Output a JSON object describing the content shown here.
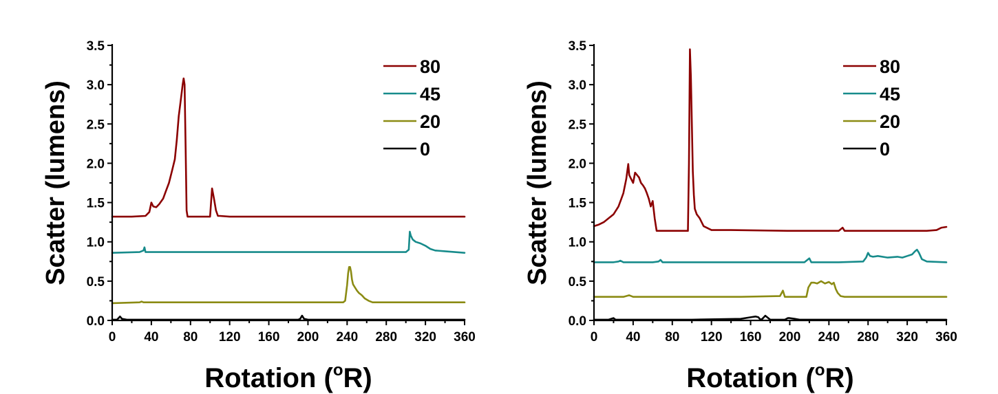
{
  "chart_data": [
    {
      "type": "line",
      "title": "",
      "xlabel": "Rotation (°R)",
      "xlabel_main": "Rotation (",
      "xlabel_sup": "o",
      "xlabel_end": "R)",
      "ylabel": "Scatter (lumens)",
      "xlim": [
        0,
        360
      ],
      "ylim": [
        0,
        3.5
      ],
      "xticks": [
        "0",
        "40",
        "80",
        "120",
        "160",
        "200",
        "240",
        "280",
        "320",
        "360"
      ],
      "yticks": [
        "0.0",
        "0.5",
        "1.0",
        "1.5",
        "2.0",
        "2.5",
        "3.0",
        "3.5"
      ],
      "legend_position": "top-right",
      "series": [
        {
          "name": "80",
          "color": "#8b0000",
          "x": [
            0,
            20,
            34,
            38,
            40,
            42,
            45,
            48,
            52,
            55,
            58,
            61,
            64,
            66,
            68,
            70,
            72,
            73,
            74,
            75,
            76,
            77,
            80,
            90,
            100,
            102,
            104,
            106,
            108,
            110,
            120,
            200,
            300,
            360
          ],
          "y": [
            1.32,
            1.32,
            1.33,
            1.38,
            1.5,
            1.45,
            1.44,
            1.48,
            1.55,
            1.65,
            1.75,
            1.9,
            2.05,
            2.3,
            2.6,
            2.8,
            3.0,
            3.08,
            3.0,
            2.2,
            1.4,
            1.32,
            1.32,
            1.32,
            1.32,
            1.68,
            1.55,
            1.4,
            1.33,
            1.33,
            1.32,
            1.32,
            1.32,
            1.32
          ]
        },
        {
          "name": "45",
          "color": "#178b8b",
          "x": [
            0,
            28,
            32,
            33,
            34,
            36,
            60,
            100,
            200,
            300,
            303,
            304,
            305,
            307,
            310,
            315,
            320,
            325,
            330,
            340,
            360
          ],
          "y": [
            0.86,
            0.87,
            0.89,
            0.93,
            0.87,
            0.87,
            0.87,
            0.87,
            0.87,
            0.87,
            0.9,
            1.13,
            1.08,
            1.03,
            1.0,
            0.98,
            0.95,
            0.91,
            0.89,
            0.88,
            0.86
          ]
        },
        {
          "name": "20",
          "color": "#8b8b13",
          "x": [
            0,
            28,
            30,
            32,
            100,
            200,
            236,
            238,
            240,
            241,
            242,
            243,
            244,
            245,
            246,
            248,
            250,
            252,
            255,
            258,
            262,
            266,
            270,
            300,
            360
          ],
          "y": [
            0.22,
            0.23,
            0.24,
            0.23,
            0.23,
            0.23,
            0.23,
            0.25,
            0.45,
            0.6,
            0.68,
            0.68,
            0.62,
            0.52,
            0.46,
            0.42,
            0.38,
            0.35,
            0.32,
            0.28,
            0.25,
            0.23,
            0.23,
            0.23,
            0.23
          ]
        },
        {
          "name": "0",
          "color": "#000000",
          "x": [
            0,
            5,
            8,
            10,
            15,
            100,
            190,
            192,
            194,
            196,
            200,
            300,
            360
          ],
          "y": [
            0.01,
            0.01,
            0.05,
            0.02,
            0.01,
            0.01,
            0.01,
            0.02,
            0.06,
            0.02,
            0.01,
            0.01,
            0.01
          ]
        }
      ]
    },
    {
      "type": "line",
      "title": "",
      "xlabel": "Rotation (°R)",
      "xlabel_main": "Rotation (",
      "xlabel_sup": "o",
      "xlabel_end": "R)",
      "ylabel": "Scatter (lumens)",
      "xlim": [
        0,
        360
      ],
      "ylim": [
        0,
        3.5
      ],
      "xticks": [
        "0",
        "40",
        "80",
        "120",
        "160",
        "200",
        "240",
        "280",
        "320",
        "360"
      ],
      "yticks": [
        "0.0",
        "0.5",
        "1.0",
        "1.5",
        "2.0",
        "2.5",
        "3.0",
        "3.5"
      ],
      "legend_position": "top-right",
      "series": [
        {
          "name": "80",
          "color": "#8b0000",
          "x": [
            0,
            5,
            10,
            15,
            20,
            25,
            28,
            30,
            33,
            35,
            36,
            38,
            40,
            42,
            44,
            46,
            48,
            50,
            52,
            54,
            56,
            58,
            60,
            62,
            64,
            70,
            80,
            90,
            96,
            97,
            98,
            99,
            100,
            101,
            102,
            103,
            105,
            108,
            112,
            120,
            130,
            140,
            200,
            250,
            254,
            256,
            300,
            340,
            350,
            355,
            360
          ],
          "y": [
            1.2,
            1.22,
            1.25,
            1.3,
            1.35,
            1.45,
            1.55,
            1.62,
            1.8,
            1.99,
            1.85,
            1.8,
            1.75,
            1.88,
            1.85,
            1.82,
            1.75,
            1.72,
            1.68,
            1.62,
            1.55,
            1.45,
            1.52,
            1.3,
            1.14,
            1.14,
            1.14,
            1.14,
            1.14,
            2.0,
            3.45,
            3.1,
            2.5,
            1.9,
            1.6,
            1.42,
            1.35,
            1.3,
            1.2,
            1.15,
            1.15,
            1.15,
            1.14,
            1.14,
            1.18,
            1.14,
            1.14,
            1.14,
            1.15,
            1.18,
            1.19
          ]
        },
        {
          "name": "45",
          "color": "#178b8b",
          "x": [
            0,
            20,
            25,
            27,
            30,
            60,
            66,
            68,
            70,
            100,
            150,
            215,
            218,
            220,
            222,
            250,
            275,
            278,
            280,
            282,
            285,
            290,
            300,
            310,
            315,
            320,
            325,
            328,
            330,
            332,
            335,
            340,
            360
          ],
          "y": [
            0.74,
            0.74,
            0.75,
            0.76,
            0.74,
            0.74,
            0.75,
            0.77,
            0.74,
            0.74,
            0.74,
            0.74,
            0.77,
            0.79,
            0.74,
            0.74,
            0.75,
            0.8,
            0.86,
            0.82,
            0.81,
            0.82,
            0.8,
            0.81,
            0.8,
            0.82,
            0.84,
            0.88,
            0.9,
            0.86,
            0.78,
            0.75,
            0.74
          ]
        },
        {
          "name": "20",
          "color": "#8b8b13",
          "x": [
            0,
            30,
            36,
            40,
            100,
            150,
            190,
            193,
            195,
            197,
            217,
            219,
            222,
            225,
            228,
            232,
            236,
            240,
            243,
            245,
            247,
            249,
            252,
            256,
            300,
            360
          ],
          "y": [
            0.3,
            0.3,
            0.32,
            0.3,
            0.3,
            0.3,
            0.31,
            0.38,
            0.3,
            0.3,
            0.3,
            0.42,
            0.48,
            0.48,
            0.47,
            0.5,
            0.47,
            0.49,
            0.46,
            0.48,
            0.4,
            0.35,
            0.31,
            0.3,
            0.3,
            0.3
          ]
        },
        {
          "name": "0",
          "color": "#000000",
          "x": [
            0,
            15,
            20,
            22,
            25,
            100,
            150,
            160,
            165,
            168,
            170,
            172,
            175,
            180,
            195,
            198,
            200,
            205,
            210,
            250,
            300,
            360
          ],
          "y": [
            0.01,
            0.01,
            0.03,
            0.01,
            0.01,
            0.01,
            0.02,
            0.04,
            0.05,
            0.04,
            0.01,
            0.02,
            0.06,
            0.01,
            0.01,
            0.03,
            0.03,
            0.02,
            0.01,
            0.01,
            0.01,
            0.01
          ]
        }
      ]
    }
  ]
}
